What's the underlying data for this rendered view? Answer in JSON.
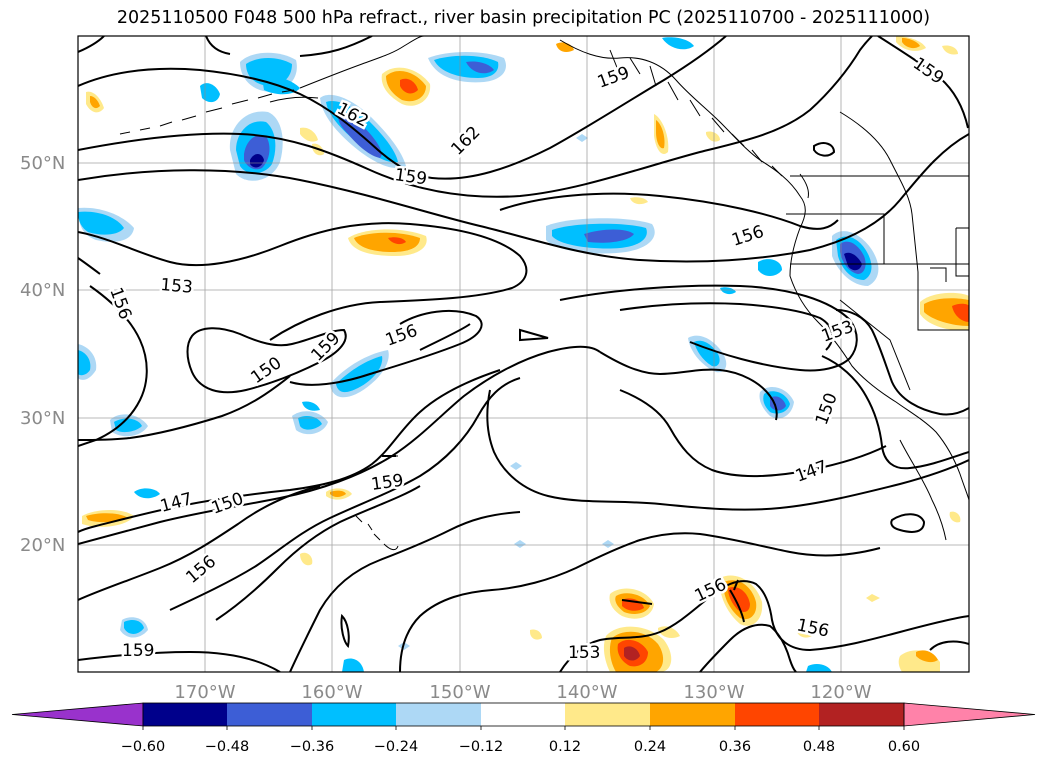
{
  "title": "2025110500 F048 500 hPa refract., river basin precipitation PC (2025110700 - 2025111000)",
  "map": {
    "lat_labels": [
      "50°N",
      "40°N",
      "30°N",
      "20°N"
    ],
    "lon_labels": [
      "170°W",
      "160°W",
      "150°W",
      "140°W",
      "130°W",
      "120°W"
    ],
    "contour_labels": [
      "162",
      "162",
      "159",
      "159",
      "159",
      "159",
      "159",
      "159",
      "159",
      "156",
      "156",
      "156",
      "156",
      "156",
      "156",
      "153",
      "153",
      "153",
      "153",
      "150",
      "150",
      "150",
      "147",
      "147"
    ]
  },
  "colorbar": {
    "ticks": [
      "−0.60",
      "−0.48",
      "−0.36",
      "−0.24",
      "−0.12",
      "0.12",
      "0.24",
      "0.36",
      "0.48",
      "0.60"
    ],
    "colors": [
      "#9932cc",
      "#00008b",
      "#3d5ed6",
      "#00bfff",
      "#add8f5",
      "#ffffff",
      "#ffe98a",
      "#ffa500",
      "#ff4500",
      "#b22222",
      "#ff82a9"
    ]
  }
}
